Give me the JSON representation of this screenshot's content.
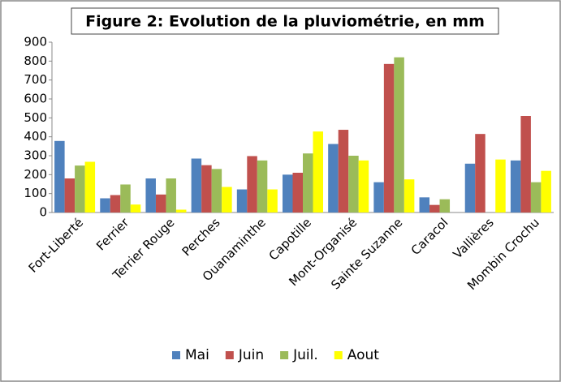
{
  "chart_data": {
    "type": "bar",
    "title": "Figure 2: Evolution de la pluviométrie, en mm",
    "categories": [
      "Fort-Liberté",
      "Ferrier",
      "Terrier Rouge",
      "Perches",
      "Ouanaminthe",
      "Capotille",
      "Mont-Organisé",
      "Sainte Suzanne",
      "Caracol",
      "Vallières",
      "Mombin Crochu"
    ],
    "series": [
      {
        "name": "Mai",
        "color": "#4f81bd",
        "values": [
          378,
          75,
          180,
          285,
          122,
          200,
          362,
          160,
          80,
          258,
          275
        ]
      },
      {
        "name": "Juin",
        "color": "#c0504d",
        "values": [
          180,
          92,
          95,
          250,
          298,
          210,
          437,
          785,
          40,
          415,
          510
        ]
      },
      {
        "name": "Juil.",
        "color": "#9bbb59",
        "values": [
          248,
          148,
          180,
          230,
          275,
          312,
          300,
          820,
          70,
          null,
          160
        ]
      },
      {
        "name": "Aout",
        "color": "#ffff00",
        "values": [
          268,
          42,
          15,
          135,
          122,
          428,
          275,
          175,
          null,
          280,
          220
        ]
      }
    ],
    "ylim": [
      0,
      900
    ],
    "yticks": [
      0,
      100,
      200,
      300,
      400,
      500,
      600,
      700,
      800,
      900
    ],
    "grid": false,
    "legend": "bottom"
  }
}
